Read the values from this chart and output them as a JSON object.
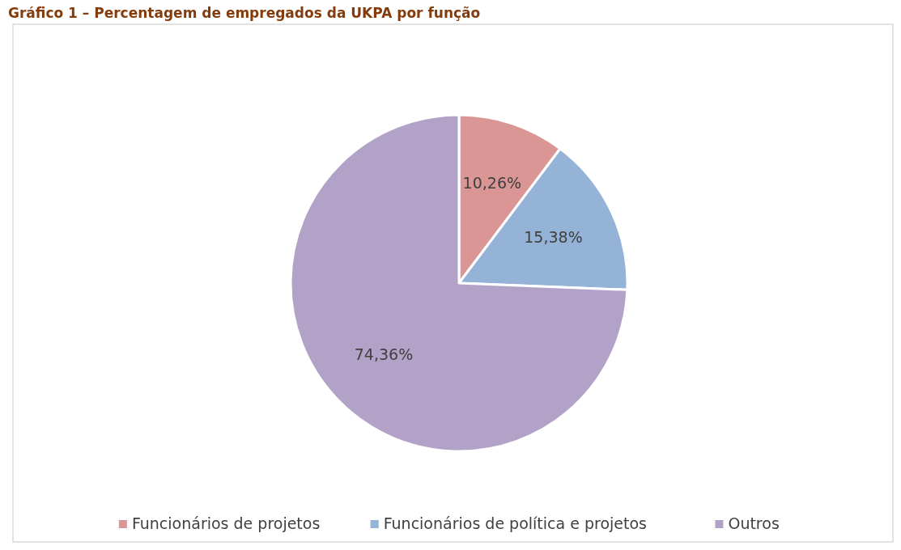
{
  "chart_data": {
    "type": "pie",
    "title": "Gráfico 1 – Percentagem de empregados da UKPA por função",
    "categories": [
      "Funcionários de projetos",
      "Funcionários de política e projetos",
      "Outros"
    ],
    "values": [
      10.26,
      15.38,
      74.36
    ],
    "colors": [
      "#d99694",
      "#95b3d7",
      "#b3a2c7"
    ],
    "value_labels": [
      "10,26%",
      "15,38%",
      "74,36%"
    ],
    "legend": "bottom"
  }
}
